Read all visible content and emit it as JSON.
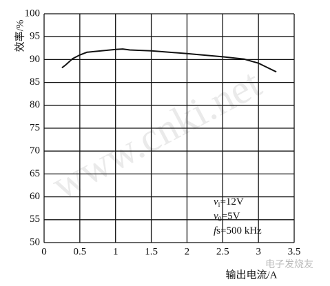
{
  "chart_data": {
    "type": "line",
    "y_label": "效率/%",
    "x_label": "输出电流/A",
    "x": [
      0.25,
      0.3,
      0.4,
      0.5,
      0.6,
      0.8,
      1.0,
      1.1,
      1.2,
      1.5,
      2.0,
      2.5,
      2.8,
      3.0,
      3.25
    ],
    "series": [
      {
        "color": "#111111",
        "values": [
          88.2,
          88.8,
          90.2,
          91.0,
          91.6,
          91.9,
          92.2,
          92.3,
          92.1,
          91.9,
          91.3,
          90.6,
          90.1,
          89.2,
          87.3
        ]
      }
    ],
    "xlim": [
      0,
      3.5
    ],
    "ylim": [
      50,
      100
    ],
    "xticks": [
      0,
      0.5,
      1,
      1.5,
      2,
      2.5,
      3,
      3.5
    ],
    "yticks": [
      50,
      55,
      60,
      65,
      70,
      75,
      80,
      85,
      90,
      95,
      100
    ],
    "grid": true,
    "annotations": [
      {
        "symbol": "v",
        "sub": "i",
        "text": "=12V"
      },
      {
        "symbol": "v",
        "sub": "0",
        "text": "=5V"
      },
      {
        "symbol": "f",
        "sub": "",
        "text": "s=500 kHz"
      }
    ],
    "watermark": "www.cnki.net",
    "logo": "电子发烧友"
  }
}
